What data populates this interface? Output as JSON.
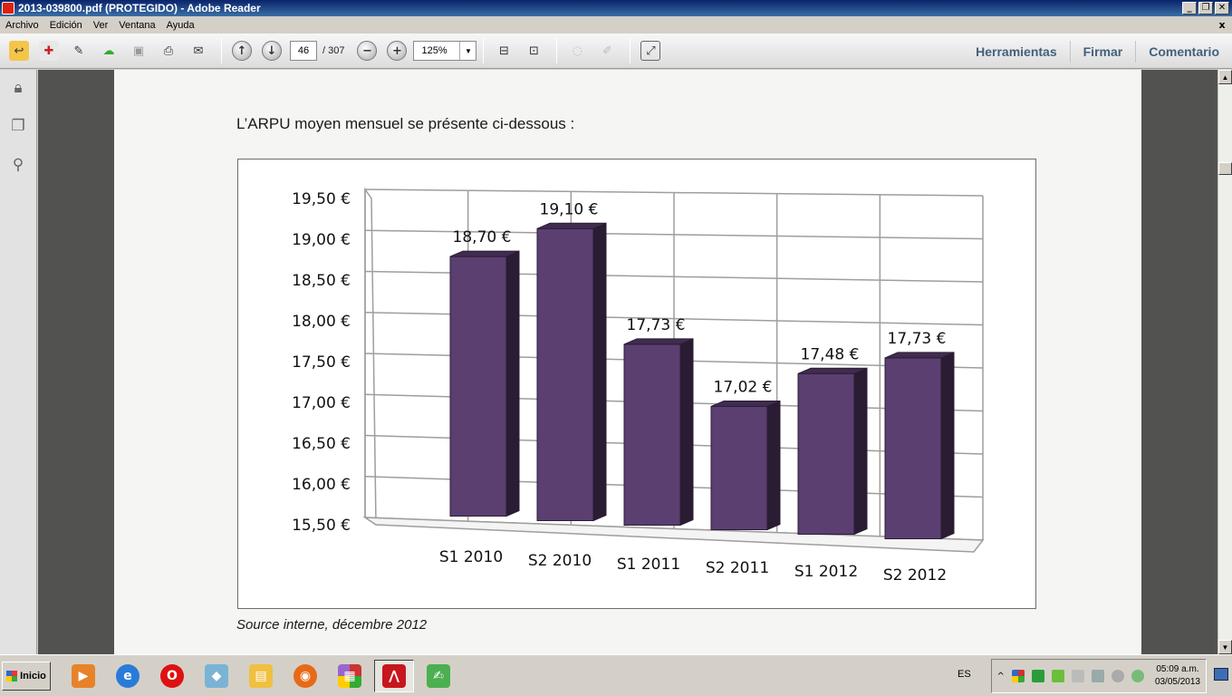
{
  "window": {
    "title": "2013-039800.pdf (PROTEGIDO) - Adobe Reader",
    "controls": [
      "_",
      "❐",
      "✕"
    ]
  },
  "menu": {
    "items": [
      "Archivo",
      "Edición",
      "Ver",
      "Ventana",
      "Ayuda"
    ],
    "doc_close": "x"
  },
  "toolbar": {
    "page_current": "46",
    "page_total": "/ 307",
    "zoom": "125%",
    "links": [
      "Herramientas",
      "Firmar",
      "Comentario"
    ]
  },
  "document": {
    "intro": "L’ARPU moyen mensuel se présente ci-dessous :",
    "source": "Source interne, décembre 2012"
  },
  "chart_data": {
    "type": "bar",
    "categories": [
      "S1 2010",
      "S2 2010",
      "S1 2011",
      "S2 2011",
      "S1 2012",
      "S2 2012"
    ],
    "values": [
      18.7,
      19.1,
      17.73,
      17.02,
      17.48,
      17.73
    ],
    "value_labels": [
      "18,70 €",
      "19,10 €",
      "17,73 €",
      "17,02 €",
      "17,48 €",
      "17,73 €"
    ],
    "y_ticks": [
      15.5,
      16.0,
      16.5,
      17.0,
      17.5,
      18.0,
      18.5,
      19.0,
      19.5
    ],
    "y_tick_labels": [
      "15,50 €",
      "16,00 €",
      "16,50 €",
      "17,00 €",
      "17,50 €",
      "18,00 €",
      "18,50 €",
      "19,00 €",
      "19,50 €"
    ],
    "ylim": [
      15.5,
      19.5
    ],
    "grid": true,
    "legend": "none",
    "bar_color": "#5b3f71",
    "title": "",
    "xlabel": "",
    "ylabel": ""
  },
  "taskbar": {
    "start": "Inicio",
    "lang": "ES",
    "time": "05:09 a.m.",
    "date": "03/05/2013"
  }
}
